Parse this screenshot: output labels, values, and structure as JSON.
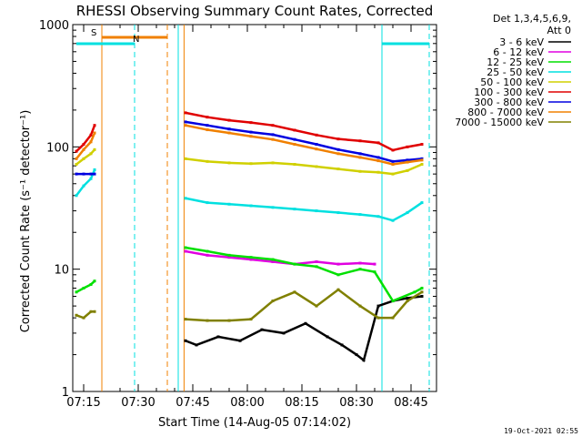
{
  "chart_data": {
    "type": "line",
    "title": "RHESSI Observing Summary Count Rates, Corrected",
    "xlabel": "Start Time (14-Aug-05 07:14:02)",
    "ylabel": "Corrected Count Rate (s⁻¹ detector⁻¹)",
    "x_tick_labels": [
      "07:15",
      "07:30",
      "07:45",
      "08:00",
      "08:15",
      "08:30",
      "08:45"
    ],
    "x_tick_minutes": [
      1,
      16,
      31,
      46,
      61,
      76,
      91
    ],
    "xlim_minutes": [
      -2,
      98
    ],
    "y_scale": "log",
    "ylim": [
      1,
      1000
    ],
    "y_tick_labels": [
      "1",
      "10",
      "100",
      "1000"
    ],
    "legend": {
      "placement": "top-right",
      "header": [
        "Det 1,3,4,5,6,9,",
        "Att 0"
      ]
    },
    "footer_date": "19-Oct-2021 02:55",
    "series": [
      {
        "name": "3 - 6 keV",
        "color": "#000000",
        "x": [
          -1,
          1,
          3,
          4,
          29,
          32,
          38,
          44,
          50,
          56,
          62,
          68,
          72,
          76,
          78,
          82,
          86,
          90,
          94
        ],
        "values": [
          null,
          null,
          null,
          null,
          2.6,
          2.4,
          2.8,
          2.6,
          3.2,
          3.0,
          3.6,
          2.8,
          2.4,
          2.0,
          1.8,
          5.0,
          5.5,
          5.8,
          6.0
        ]
      },
      {
        "name": "6 - 12 keV",
        "color": "#e000e0",
        "x": [
          29,
          35,
          41,
          47,
          53,
          59,
          65,
          71,
          77,
          81
        ],
        "values": [
          14.0,
          13.0,
          12.5,
          12.0,
          11.5,
          11.0,
          11.5,
          11.0,
          11.2,
          11.0
        ]
      },
      {
        "name": "12 - 25 keV",
        "color": "#00e000",
        "x": [
          -1,
          1,
          3,
          4,
          29,
          35,
          41,
          47,
          53,
          59,
          65,
          71,
          77,
          81,
          86,
          92,
          94
        ],
        "values": [
          6.5,
          7.0,
          7.5,
          8.0,
          15.0,
          14.0,
          13.0,
          12.5,
          12.0,
          11.0,
          10.5,
          9.0,
          10.0,
          9.5,
          5.5,
          6.5,
          7.0
        ]
      },
      {
        "name": "25 - 50 keV",
        "color": "#00e0e0",
        "x": [
          -1,
          1,
          3,
          4,
          29,
          35,
          41,
          47,
          53,
          59,
          65,
          71,
          77,
          82,
          86,
          90,
          94
        ],
        "values": [
          40,
          48,
          55,
          65,
          38,
          35,
          34,
          33,
          32,
          31,
          30,
          29,
          28,
          27,
          25,
          29,
          35
        ]
      },
      {
        "name": "50 - 100 keV",
        "color": "#d0d000",
        "x": [
          -1,
          1,
          3,
          4,
          29,
          35,
          41,
          47,
          53,
          59,
          65,
          71,
          77,
          82,
          86,
          90,
          94
        ],
        "values": [
          72,
          80,
          88,
          95,
          80,
          76,
          74,
          73,
          74,
          72,
          69,
          66,
          63,
          62,
          60,
          64,
          72
        ]
      },
      {
        "name": "100 - 300 keV",
        "color": "#e00000",
        "x": [
          -1,
          1,
          3,
          4,
          29,
          35,
          41,
          47,
          53,
          59,
          65,
          71,
          77,
          82,
          86,
          90,
          94
        ],
        "values": [
          92,
          105,
          125,
          150,
          190,
          175,
          165,
          158,
          150,
          137,
          125,
          116,
          112,
          108,
          94,
          100,
          105
        ]
      },
      {
        "name": "300 - 800 keV",
        "color": "#0000e0",
        "x": [
          -1,
          1,
          3,
          4,
          29,
          35,
          41,
          47,
          53,
          59,
          65,
          71,
          77,
          82,
          86,
          90,
          94
        ],
        "values": [
          60,
          60,
          60,
          60,
          160,
          150,
          140,
          132,
          126,
          115,
          105,
          95,
          88,
          82,
          76,
          78,
          80
        ]
      },
      {
        "name": "800 - 7000 keV",
        "color": "#f08000",
        "x": [
          -1,
          1,
          3,
          4,
          29,
          35,
          41,
          47,
          53,
          59,
          65,
          71,
          77,
          82,
          86,
          90,
          94
        ],
        "values": [
          80,
          95,
          110,
          130,
          150,
          138,
          130,
          122,
          115,
          105,
          96,
          88,
          82,
          77,
          72,
          75,
          78
        ]
      },
      {
        "name": "7000 - 15000 keV",
        "color": "#808000",
        "x": [
          -1,
          1,
          3,
          4,
          29,
          35,
          41,
          47,
          53,
          59,
          65,
          71,
          77,
          82,
          86,
          90,
          94
        ],
        "values": [
          4.2,
          4.0,
          4.5,
          4.5,
          3.9,
          3.8,
          3.8,
          3.9,
          5.5,
          6.5,
          5.0,
          6.8,
          5.0,
          4.0,
          4.0,
          5.5,
          6.5
        ]
      }
    ],
    "bars": [
      {
        "label": "S",
        "color": "#f08000",
        "x_start": 6,
        "x_end": 24
      },
      {
        "label": "N",
        "color": "#00e0e0",
        "x_start": -1,
        "x_end": 15
      },
      {
        "label": "",
        "color": "#00e0e0",
        "x_start": 83,
        "x_end": 96
      }
    ],
    "vertical_lines": [
      {
        "color": "#f08000",
        "style": "solid",
        "x": 6
      },
      {
        "color": "#f08000",
        "style": "dashed",
        "x": 24
      },
      {
        "color": "#00e0e0",
        "style": "dashed",
        "x": 15
      },
      {
        "color": "#00e0e0",
        "style": "solid",
        "x": 27
      },
      {
        "color": "#f08000",
        "style": "solid",
        "x": 28.6
      },
      {
        "color": "#00e0e0",
        "style": "solid",
        "x": 83
      },
      {
        "color": "#00e0e0",
        "style": "dashed",
        "x": 96
      }
    ]
  }
}
